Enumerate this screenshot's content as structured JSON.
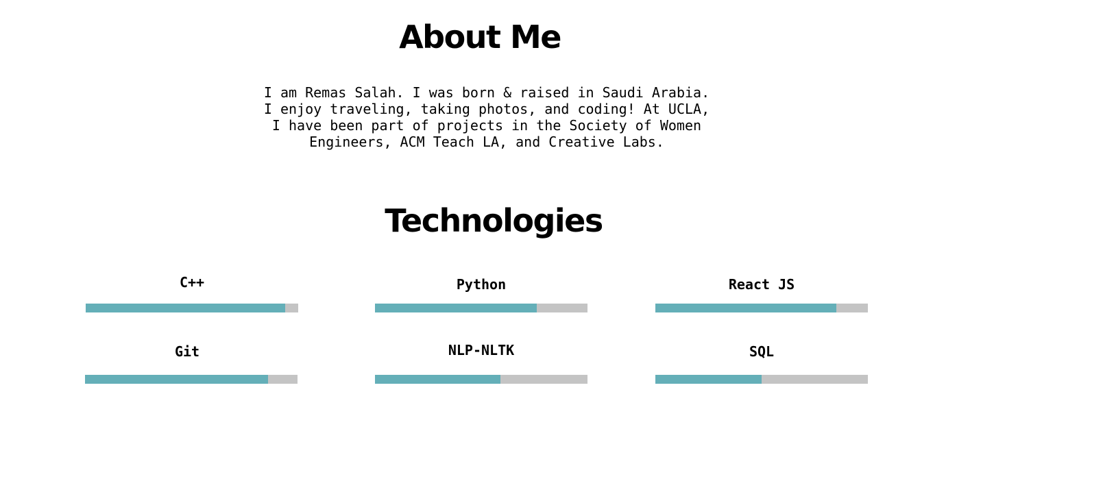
{
  "about": {
    "title": "About Me",
    "text": "I am Remas Salah. I was born & raised in Saudi Arabia.\nI enjoy traveling, taking photos, and coding! At UCLA,\nI have been part  of projects in the Society of Women\nEngineers, ACM Teach LA, and Creative Labs."
  },
  "technologies": {
    "title": "Technologies",
    "skills": [
      {
        "name": "C++",
        "level": 0.94
      },
      {
        "name": "Python",
        "level": 0.76
      },
      {
        "name": "React JS",
        "level": 0.85
      },
      {
        "name": "Git",
        "level": 0.86
      },
      {
        "name": "NLP-NLTK",
        "level": 0.59
      },
      {
        "name": "SQL",
        "level": 0.5
      }
    ]
  },
  "colors": {
    "bar_fill": "#64afb8",
    "bar_track": "#c4c4c4",
    "text": "#000000",
    "background": "#ffffff"
  }
}
